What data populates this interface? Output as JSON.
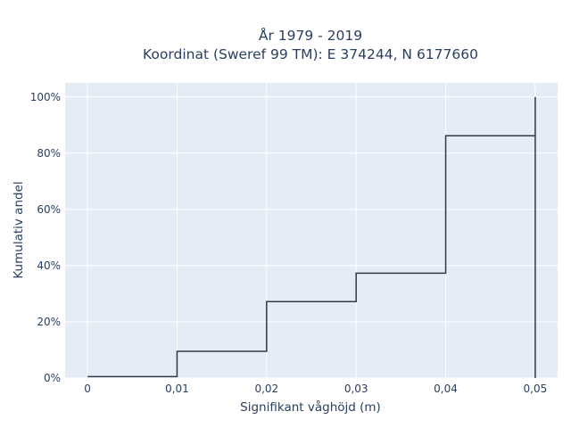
{
  "chart_data": {
    "type": "line",
    "line_shape": "step",
    "title": [
      "År 1979 - 2019",
      "Koordinat (Sweref 99 TM): E 374244, N 6177660"
    ],
    "xlabel": "Signifikant våghöjd (m)",
    "ylabel": "Kumulativ andel",
    "xlim": [
      -0.0025,
      0.0525
    ],
    "ylim": [
      0,
      105
    ],
    "x_ticks": [
      0,
      0.01,
      0.02,
      0.03,
      0.04,
      0.05
    ],
    "x_tick_labels": [
      "0",
      "0,01",
      "0,02",
      "0,03",
      "0,04",
      "0,05"
    ],
    "y_ticks": [
      0,
      20,
      40,
      60,
      80,
      100
    ],
    "y_tick_labels": [
      "0%",
      "20%",
      "40%",
      "60%",
      "80%",
      "100%"
    ],
    "series": [
      {
        "x": [
          0,
          0.01,
          0.01,
          0.02,
          0.02,
          0.03,
          0.03,
          0.04,
          0.04,
          0.05,
          0.05,
          0.05
        ],
        "y": [
          0.5,
          0.5,
          9.5,
          9.5,
          27.2,
          27.2,
          37.3,
          37.3,
          86.2,
          86.2,
          100,
          0
        ],
        "color": "#2e3a46"
      }
    ],
    "grid": true,
    "legend": "none",
    "colors": {
      "plot_bg": "#e5ecf6",
      "grid": "#ffffff",
      "text": "#2a3f5f"
    }
  }
}
